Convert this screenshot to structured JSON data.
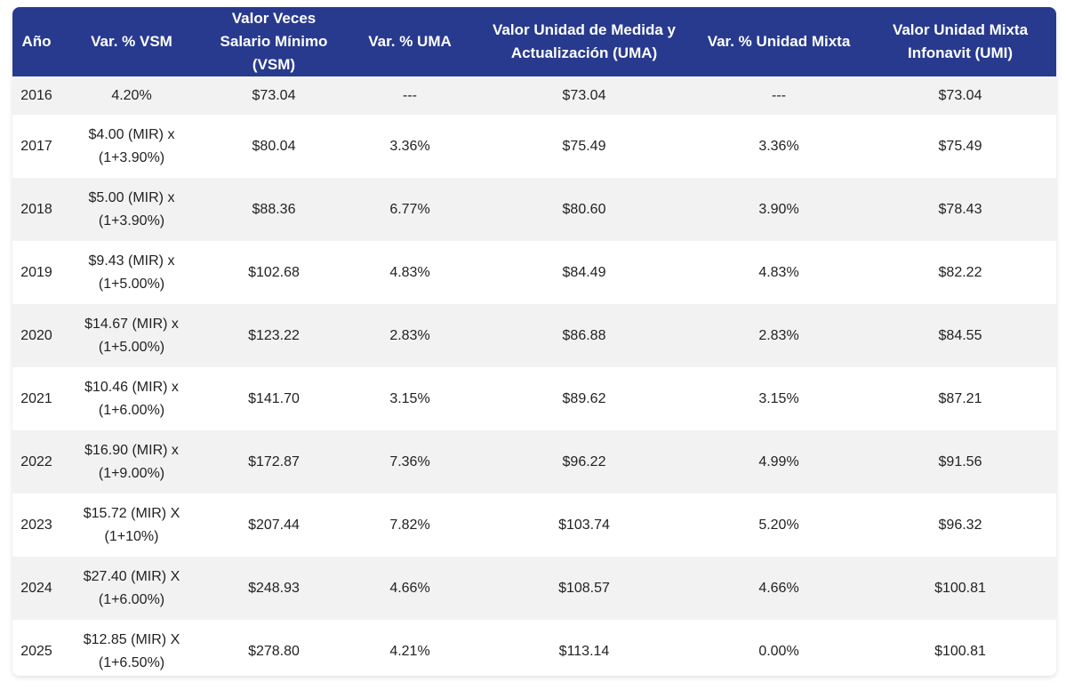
{
  "headers": {
    "year": "Año",
    "var_vsm": "Var. % VSM",
    "vsm": "Valor Veces Salario Mínimo (VSM)",
    "var_uma": "Var. % UMA",
    "uma": "Valor Unidad de Medida y Actualización (UMA)",
    "var_mixta": "Var. % Unidad Mixta",
    "umi": "Valor Unidad Mixta Infonavit (UMI)"
  },
  "rows": [
    {
      "year": "2016",
      "var_vsm": "4.20%",
      "vsm": "$73.04",
      "var_uma": "---",
      "uma": "$73.04",
      "var_mixta": "---",
      "umi": "$73.04"
    },
    {
      "year": "2017",
      "var_vsm": "$4.00 (MIR) x (1+3.90%)",
      "vsm": "$80.04",
      "var_uma": "3.36%",
      "uma": "$75.49",
      "var_mixta": "3.36%",
      "umi": "$75.49"
    },
    {
      "year": "2018",
      "var_vsm": "$5.00 (MIR) x (1+3.90%)",
      "vsm": "$88.36",
      "var_uma": "6.77%",
      "uma": "$80.60",
      "var_mixta": "3.90%",
      "umi": "$78.43"
    },
    {
      "year": "2019",
      "var_vsm": "$9.43 (MIR) x (1+5.00%)",
      "vsm": "$102.68",
      "var_uma": "4.83%",
      "uma": "$84.49",
      "var_mixta": "4.83%",
      "umi": "$82.22"
    },
    {
      "year": "2020",
      "var_vsm": "$14.67 (MIR) x (1+5.00%)",
      "vsm": "$123.22",
      "var_uma": "2.83%",
      "uma": "$86.88",
      "var_mixta": "2.83%",
      "umi": "$84.55"
    },
    {
      "year": "2021",
      "var_vsm": "$10.46 (MIR) x (1+6.00%)",
      "vsm": "$141.70",
      "var_uma": "3.15%",
      "uma": "$89.62",
      "var_mixta": "3.15%",
      "umi": "$87.21"
    },
    {
      "year": "2022",
      "var_vsm": "$16.90 (MIR) x (1+9.00%)",
      "vsm": "$172.87",
      "var_uma": "7.36%",
      "uma": "$96.22",
      "var_mixta": "4.99%",
      "umi": "$91.56"
    },
    {
      "year": "2023",
      "var_vsm": "$15.72 (MIR) X (1+10%)",
      "vsm": "$207.44",
      "var_uma": "7.82%",
      "uma": "$103.74",
      "var_mixta": "5.20%",
      "umi": "$96.32"
    },
    {
      "year": "2024",
      "var_vsm": "$27.40 (MIR) X (1+6.00%)",
      "vsm": "$248.93",
      "var_uma": "4.66%",
      "uma": "$108.57",
      "var_mixta": "4.66%",
      "umi": "$100.81"
    },
    {
      "year": "2025",
      "var_vsm": "$12.85 (MIR) X (1+6.50%)",
      "vsm": "$278.80",
      "var_uma": "4.21%",
      "uma": "$113.14",
      "var_mixta": "0.00%",
      "umi": "$100.81"
    }
  ],
  "colors": {
    "header_bg": "#283a8e",
    "header_text": "#ffffff",
    "stripe": "#f2f2f2"
  }
}
